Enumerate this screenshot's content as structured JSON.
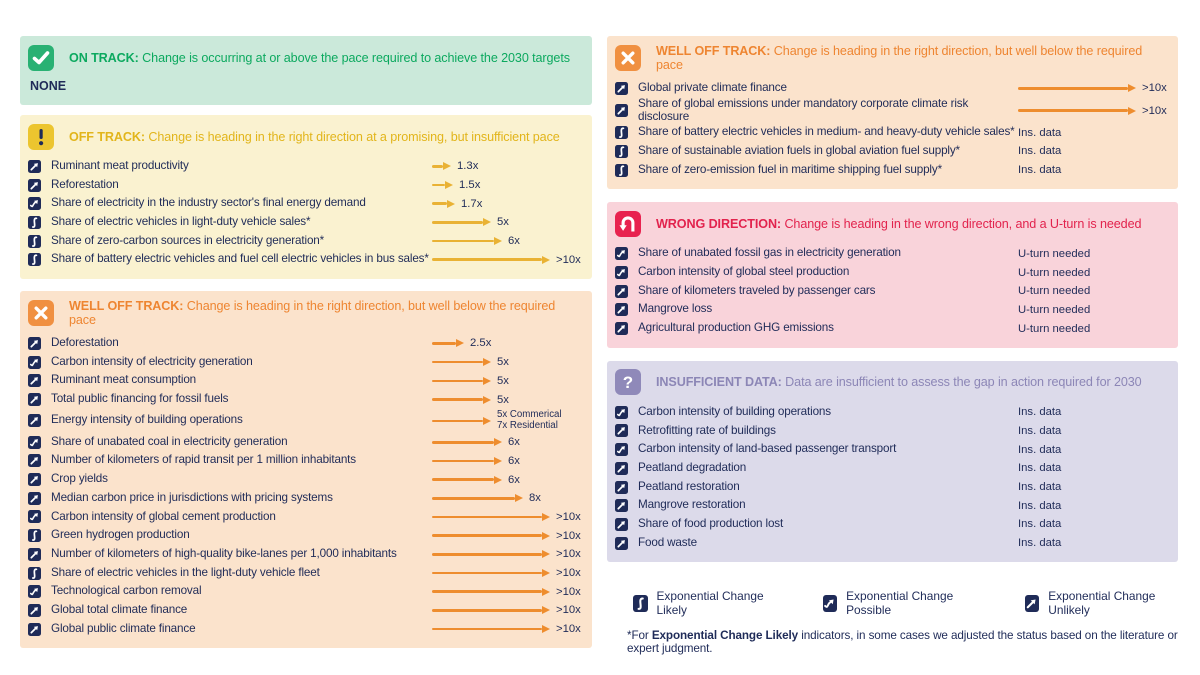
{
  "chart_data": {
    "type": "table",
    "navy": "#1f2b58",
    "sections": [
      {
        "id": "on-track",
        "column": "left",
        "status": "ON TRACK:",
        "icon": "check-icon",
        "description": "Change is occurring at or above the pace required to achieve the 2030 targets",
        "colors": {
          "bg": "#cbe9da",
          "icon_bg": "#29b173",
          "title": "#0ca95f",
          "arrow": "#29b173",
          "glyph": "#ffffff"
        },
        "empty": "NONE",
        "items": []
      },
      {
        "id": "off-track",
        "column": "left",
        "status": "OFF TRACK:",
        "icon": "exclamation-icon",
        "description": "Change is heading in the right direction at a promising, but insufficient pace",
        "colors": {
          "bg": "#faf2d0",
          "icon_bg": "#ecc52f",
          "title": "#e2b51b",
          "arrow": "#e9b234",
          "glyph": "#1f2b58"
        },
        "items": [
          {
            "label": "Ruminant meat productivity",
            "exp": "unlikely",
            "pace": {
              "type": "arrow",
              "mult": 1.3,
              "label": "1.3x"
            }
          },
          {
            "label": "Reforestation",
            "exp": "unlikely",
            "pace": {
              "type": "arrow",
              "mult": 1.5,
              "label": "1.5x"
            }
          },
          {
            "label": "Share of electricity in the industry sector's final energy demand",
            "exp": "possible",
            "pace": {
              "type": "arrow",
              "mult": 1.7,
              "label": "1.7x"
            }
          },
          {
            "label": "Share of electric vehicles in light-duty vehicle sales*",
            "exp": "likely",
            "pace": {
              "type": "arrow",
              "mult": 5,
              "label": "5x"
            }
          },
          {
            "label": "Share of zero-carbon sources in electricity generation*",
            "exp": "likely",
            "pace": {
              "type": "arrow",
              "mult": 6,
              "label": "6x"
            }
          },
          {
            "label": "Share of battery electric vehicles and fuel cell electric vehicles in bus sales*",
            "exp": "likely",
            "pace": {
              "type": "arrow",
              "mult": 10.5,
              "label": ">10x"
            }
          }
        ]
      },
      {
        "id": "well-off-track-1",
        "column": "left",
        "status": "WELL OFF TRACK:",
        "icon": "x-icon",
        "description": "Change is heading in the right direction, but well below the required pace",
        "colors": {
          "bg": "#fbe3cc",
          "icon_bg": "#f09041",
          "title": "#ee8531",
          "arrow": "#ee8d2e",
          "glyph": "#ffffff"
        },
        "items": [
          {
            "label": "Deforestation",
            "exp": "unlikely",
            "pace": {
              "type": "arrow",
              "mult": 2.5,
              "label": "2.5x"
            }
          },
          {
            "label": "Carbon intensity of electricity generation",
            "exp": "possible",
            "pace": {
              "type": "arrow",
              "mult": 5,
              "label": "5x"
            }
          },
          {
            "label": "Ruminant meat consumption",
            "exp": "unlikely",
            "pace": {
              "type": "arrow",
              "mult": 5,
              "label": "5x"
            }
          },
          {
            "label": "Total public financing for fossil fuels",
            "exp": "unlikely",
            "pace": {
              "type": "arrow",
              "mult": 5,
              "label": "5x"
            }
          },
          {
            "label": "Energy intensity of building operations",
            "exp": "unlikely",
            "pace": {
              "type": "arrow",
              "mult": 5,
              "label": "5x Commerical",
              "label2": "7x Residential"
            }
          },
          {
            "label": "Share of unabated coal in electricity generation",
            "exp": "possible",
            "pace": {
              "type": "arrow",
              "mult": 6,
              "label": "6x"
            }
          },
          {
            "label": "Number of kilometers of rapid transit per 1 million inhabitants",
            "exp": "unlikely",
            "pace": {
              "type": "arrow",
              "mult": 6,
              "label": "6x"
            }
          },
          {
            "label": "Crop yields",
            "exp": "unlikely",
            "pace": {
              "type": "arrow",
              "mult": 6,
              "label": "6x"
            }
          },
          {
            "label": "Median carbon price in jurisdictions with pricing systems",
            "exp": "unlikely",
            "pace": {
              "type": "arrow",
              "mult": 8,
              "label": "8x"
            }
          },
          {
            "label": "Carbon intensity of global cement production",
            "exp": "possible",
            "pace": {
              "type": "arrow",
              "mult": 10.5,
              "label": ">10x"
            }
          },
          {
            "label": "Green hydrogen production",
            "exp": "likely",
            "pace": {
              "type": "arrow",
              "mult": 10.5,
              "label": ">10x"
            }
          },
          {
            "label": "Number of kilometers of high-quality bike-lanes per 1,000 inhabitants",
            "exp": "unlikely",
            "pace": {
              "type": "arrow",
              "mult": 10.5,
              "label": ">10x"
            }
          },
          {
            "label": "Share of electric vehicles in the light-duty vehicle fleet",
            "exp": "likely",
            "pace": {
              "type": "arrow",
              "mult": 10.5,
              "label": ">10x"
            }
          },
          {
            "label": "Technological carbon removal",
            "exp": "possible",
            "pace": {
              "type": "arrow",
              "mult": 10.5,
              "label": ">10x"
            }
          },
          {
            "label": "Global total climate finance",
            "exp": "unlikely",
            "pace": {
              "type": "arrow",
              "mult": 10.5,
              "label": ">10x"
            }
          },
          {
            "label": "Global public climate finance",
            "exp": "unlikely",
            "pace": {
              "type": "arrow",
              "mult": 10.5,
              "label": ">10x"
            }
          }
        ]
      },
      {
        "id": "well-off-track-2",
        "column": "right",
        "status": "WELL OFF TRACK:",
        "icon": "x-icon",
        "description": "Change is heading in the right direction, but well below the required pace",
        "colors": {
          "bg": "#fbe3cc",
          "icon_bg": "#f09041",
          "title": "#ee8531",
          "arrow": "#ee8d2e",
          "glyph": "#ffffff"
        },
        "items": [
          {
            "label": "Global private climate finance",
            "exp": "unlikely",
            "pace": {
              "type": "arrow",
              "mult": 10.5,
              "label": ">10x"
            }
          },
          {
            "label": "Share of global emissions under mandatory corporate climate risk disclosure",
            "exp": "unlikely",
            "pace": {
              "type": "arrow",
              "mult": 10.5,
              "label": ">10x"
            }
          },
          {
            "label": "Share of battery electric vehicles in medium- and heavy-duty vehicle sales*",
            "exp": "likely",
            "pace": {
              "type": "text",
              "label": "Ins. data"
            }
          },
          {
            "label": "Share of sustainable aviation fuels in global aviation fuel supply*",
            "exp": "likely",
            "pace": {
              "type": "text",
              "label": "Ins. data"
            }
          },
          {
            "label": "Share of zero-emission fuel in maritime shipping fuel supply*",
            "exp": "likely",
            "pace": {
              "type": "text",
              "label": "Ins. data"
            }
          }
        ]
      },
      {
        "id": "wrong-direction",
        "column": "right",
        "status": "WRONG DIRECTION:",
        "icon": "u-turn-icon",
        "description": "Change is heading in the wrong direction, and a U-turn is needed",
        "colors": {
          "bg": "#f9d3da",
          "icon_bg": "#e8224f",
          "title": "#e2234d",
          "arrow": "#e2234d",
          "glyph": "#ffffff"
        },
        "items": [
          {
            "label": "Share of unabated fossil gas in electricity generation",
            "exp": "possible",
            "pace": {
              "type": "text",
              "label": "U-turn needed"
            }
          },
          {
            "label": "Carbon intensity of global steel production",
            "exp": "possible",
            "pace": {
              "type": "text",
              "label": "U-turn needed"
            }
          },
          {
            "label": "Share of kilometers traveled by passenger cars",
            "exp": "unlikely",
            "pace": {
              "type": "text",
              "label": "U-turn needed"
            }
          },
          {
            "label": "Mangrove loss",
            "exp": "unlikely",
            "pace": {
              "type": "text",
              "label": "U-turn needed"
            }
          },
          {
            "label": "Agricultural production GHG emissions",
            "exp": "unlikely",
            "pace": {
              "type": "text",
              "label": "U-turn needed"
            }
          }
        ]
      },
      {
        "id": "insufficient-data",
        "column": "right",
        "status": "INSUFFICIENT DATA:",
        "icon": "question-icon",
        "description": "Data are insufficient to assess the gap in action required for 2030",
        "colors": {
          "bg": "#dcdaea",
          "icon_bg": "#8f89b9",
          "title": "#8c86b6",
          "arrow": "#8c86b6",
          "glyph": "#ffffff"
        },
        "items": [
          {
            "label": "Carbon intensity of building operations",
            "exp": "possible",
            "pace": {
              "type": "text",
              "label": "Ins. data"
            }
          },
          {
            "label": "Retrofitting rate of buildings",
            "exp": "unlikely",
            "pace": {
              "type": "text",
              "label": "Ins. data"
            }
          },
          {
            "label": "Carbon intensity of land-based passenger transport",
            "exp": "possible",
            "pace": {
              "type": "text",
              "label": "Ins. data"
            }
          },
          {
            "label": "Peatland degradation",
            "exp": "unlikely",
            "pace": {
              "type": "text",
              "label": "Ins. data"
            }
          },
          {
            "label": "Peatland restoration",
            "exp": "unlikely",
            "pace": {
              "type": "text",
              "label": "Ins. data"
            }
          },
          {
            "label": "Mangrove restoration",
            "exp": "unlikely",
            "pace": {
              "type": "text",
              "label": "Ins. data"
            }
          },
          {
            "label": "Share of food production lost",
            "exp": "unlikely",
            "pace": {
              "type": "text",
              "label": "Ins. data"
            }
          },
          {
            "label": "Food waste",
            "exp": "unlikely",
            "pace": {
              "type": "text",
              "label": "Ins. data"
            }
          }
        ]
      }
    ],
    "legend": [
      {
        "icon": "exp-likely-icon",
        "exp": "likely",
        "label": "Exponential Change Likely"
      },
      {
        "icon": "exp-possible-icon",
        "exp": "possible",
        "label": "Exponential Change Possible"
      },
      {
        "icon": "exp-unlikely-icon",
        "exp": "unlikely",
        "label": "Exponential Change Unlikely"
      }
    ],
    "footnote": {
      "prefix": "*For ",
      "bold": "Exponential Change Likely",
      "rest": " indicators, in some cases we adjusted the status based on the literature or expert judgment."
    }
  }
}
